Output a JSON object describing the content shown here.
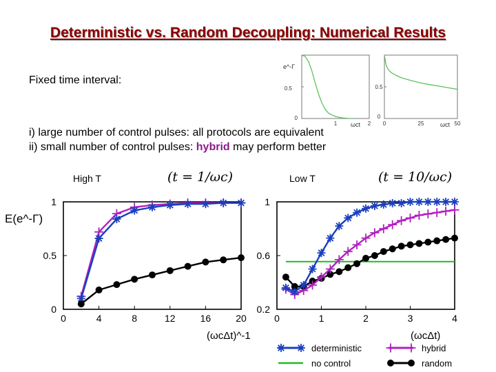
{
  "slide": {
    "title": "Deterministic vs. Random Decoupling: Numerical Results",
    "fixed_interval": "Fixed time interval:",
    "line1": "i) large number of control pulses: all protocols are equivalent",
    "line2_pre": "ii) small number of control pulses: ",
    "line2_highlight": "hybrid",
    "line2_post": " may perform better",
    "panel_left_label": "High T",
    "panel_right_label": "Low T",
    "formula_left": "(t = 1/ωc)",
    "formula_right": "(t = 10/ωc)",
    "y_axis_label": "E(e^-Γ)",
    "x_axis_left_label": "(ωcΔt)^-1",
    "x_axis_right_label": "(ωcΔt)"
  },
  "legend": [
    {
      "label": "deterministic",
      "color": "#1a3fbf",
      "marker": "asterisk"
    },
    {
      "label": "hybrid",
      "color": "#b020c0",
      "marker": "plus"
    },
    {
      "label": "no control",
      "color": "#22b822",
      "marker": "line"
    },
    {
      "label": "random",
      "color": "#000000",
      "marker": "dot"
    }
  ],
  "chart_data": [
    {
      "type": "line",
      "title": "",
      "ylabel": "e^-Γ",
      "xlabel": "ωct",
      "xlim": [
        0,
        2
      ],
      "ylim": [
        0,
        1
      ],
      "x_ticks": [
        "1",
        "2"
      ],
      "y_ticks": [
        "0",
        "0.5"
      ],
      "series": [
        {
          "color": "#22b822",
          "x": [
            0,
            0.1,
            0.2,
            0.3,
            0.4,
            0.5,
            0.6,
            0.7,
            0.8,
            1.0,
            1.2,
            1.4,
            1.6
          ],
          "y": [
            1.0,
            0.98,
            0.9,
            0.75,
            0.56,
            0.38,
            0.24,
            0.14,
            0.08,
            0.03,
            0.01,
            0.0,
            0.0
          ]
        }
      ]
    },
    {
      "type": "line",
      "title": "",
      "xlabel": "ωct",
      "xlim": [
        0,
        50
      ],
      "ylim": [
        0,
        1
      ],
      "x_ticks": [
        "0",
        "25",
        "50"
      ],
      "y_ticks": [
        "0",
        "0.5"
      ],
      "series": [
        {
          "color": "#22b822",
          "x": [
            0,
            1,
            2,
            3,
            5,
            8,
            12,
            18,
            25,
            32,
            40,
            50
          ],
          "y": [
            1.0,
            0.86,
            0.8,
            0.76,
            0.72,
            0.68,
            0.64,
            0.6,
            0.56,
            0.53,
            0.5,
            0.46
          ]
        }
      ]
    },
    {
      "type": "line",
      "title": "High T",
      "xlabel": "(ωcΔt)^-1",
      "ylabel": "E(e^-Γ)",
      "xlim": [
        0,
        20
      ],
      "ylim": [
        0,
        1
      ],
      "x_ticks": [
        0,
        4,
        8,
        12,
        16,
        20
      ],
      "y_ticks": [
        0,
        0.5,
        1
      ],
      "series": [
        {
          "name": "hybrid",
          "color": "#b020c0",
          "marker": "plus",
          "x": [
            2,
            4,
            6,
            8,
            10,
            12,
            14,
            16,
            18,
            20
          ],
          "y": [
            0.12,
            0.72,
            0.89,
            0.95,
            0.97,
            0.98,
            0.99,
            0.99,
            0.99,
            0.99
          ]
        },
        {
          "name": "deterministic",
          "color": "#1a3fbf",
          "marker": "asterisk",
          "x": [
            2,
            4,
            6,
            8,
            10,
            12,
            14,
            16,
            18,
            20
          ],
          "y": [
            0.1,
            0.66,
            0.84,
            0.92,
            0.95,
            0.97,
            0.98,
            0.98,
            0.99,
            0.99
          ]
        },
        {
          "name": "random",
          "color": "#000000",
          "marker": "dot",
          "x": [
            2,
            4,
            6,
            8,
            10,
            12,
            14,
            16,
            18,
            20
          ],
          "y": [
            0.05,
            0.18,
            0.23,
            0.28,
            0.32,
            0.36,
            0.4,
            0.44,
            0.46,
            0.48
          ]
        }
      ]
    },
    {
      "type": "line",
      "title": "Low T",
      "xlabel": "(ωcΔt)",
      "xlim": [
        0,
        4
      ],
      "ylim": [
        0.2,
        1
      ],
      "x_ticks": [
        0,
        1,
        2,
        3,
        4
      ],
      "y_ticks": [
        0.2,
        0.6,
        1
      ],
      "series": [
        {
          "name": "no control",
          "color": "#22b822",
          "marker": "none",
          "x": [
            0.2,
            4.0
          ],
          "y": [
            0.555,
            0.555
          ]
        },
        {
          "name": "random",
          "color": "#000000",
          "marker": "dot",
          "x": [
            0.2,
            0.4,
            0.6,
            0.8,
            1.0,
            1.2,
            1.4,
            1.6,
            1.8,
            2.0,
            2.2,
            2.4,
            2.6,
            2.8,
            3.0,
            3.2,
            3.4,
            3.6,
            3.8,
            4.0
          ],
          "y": [
            0.44,
            0.37,
            0.37,
            0.41,
            0.43,
            0.46,
            0.48,
            0.51,
            0.54,
            0.58,
            0.6,
            0.63,
            0.65,
            0.67,
            0.68,
            0.69,
            0.7,
            0.71,
            0.72,
            0.73
          ]
        },
        {
          "name": "hybrid",
          "color": "#b020c0",
          "marker": "plus",
          "x": [
            0.2,
            0.4,
            0.6,
            0.8,
            1.0,
            1.2,
            1.4,
            1.6,
            1.8,
            2.0,
            2.2,
            2.4,
            2.6,
            2.8,
            3.0,
            3.2,
            3.4,
            3.6,
            3.8,
            4.0
          ],
          "y": [
            0.35,
            0.31,
            0.34,
            0.38,
            0.44,
            0.5,
            0.57,
            0.63,
            0.68,
            0.73,
            0.77,
            0.8,
            0.83,
            0.86,
            0.88,
            0.9,
            0.91,
            0.92,
            0.93,
            0.94
          ]
        },
        {
          "name": "deterministic",
          "color": "#1a3fbf",
          "marker": "asterisk",
          "x": [
            0.2,
            0.4,
            0.6,
            0.8,
            1.0,
            1.2,
            1.4,
            1.6,
            1.8,
            2.0,
            2.2,
            2.4,
            2.6,
            2.8,
            3.0,
            3.2,
            3.4,
            3.6,
            3.8,
            4.0
          ],
          "y": [
            0.36,
            0.33,
            0.38,
            0.5,
            0.62,
            0.73,
            0.82,
            0.88,
            0.92,
            0.95,
            0.97,
            0.98,
            0.99,
            0.99,
            1.0,
            1.0,
            1.0,
            1.0,
            1.0,
            1.0
          ]
        }
      ]
    }
  ]
}
